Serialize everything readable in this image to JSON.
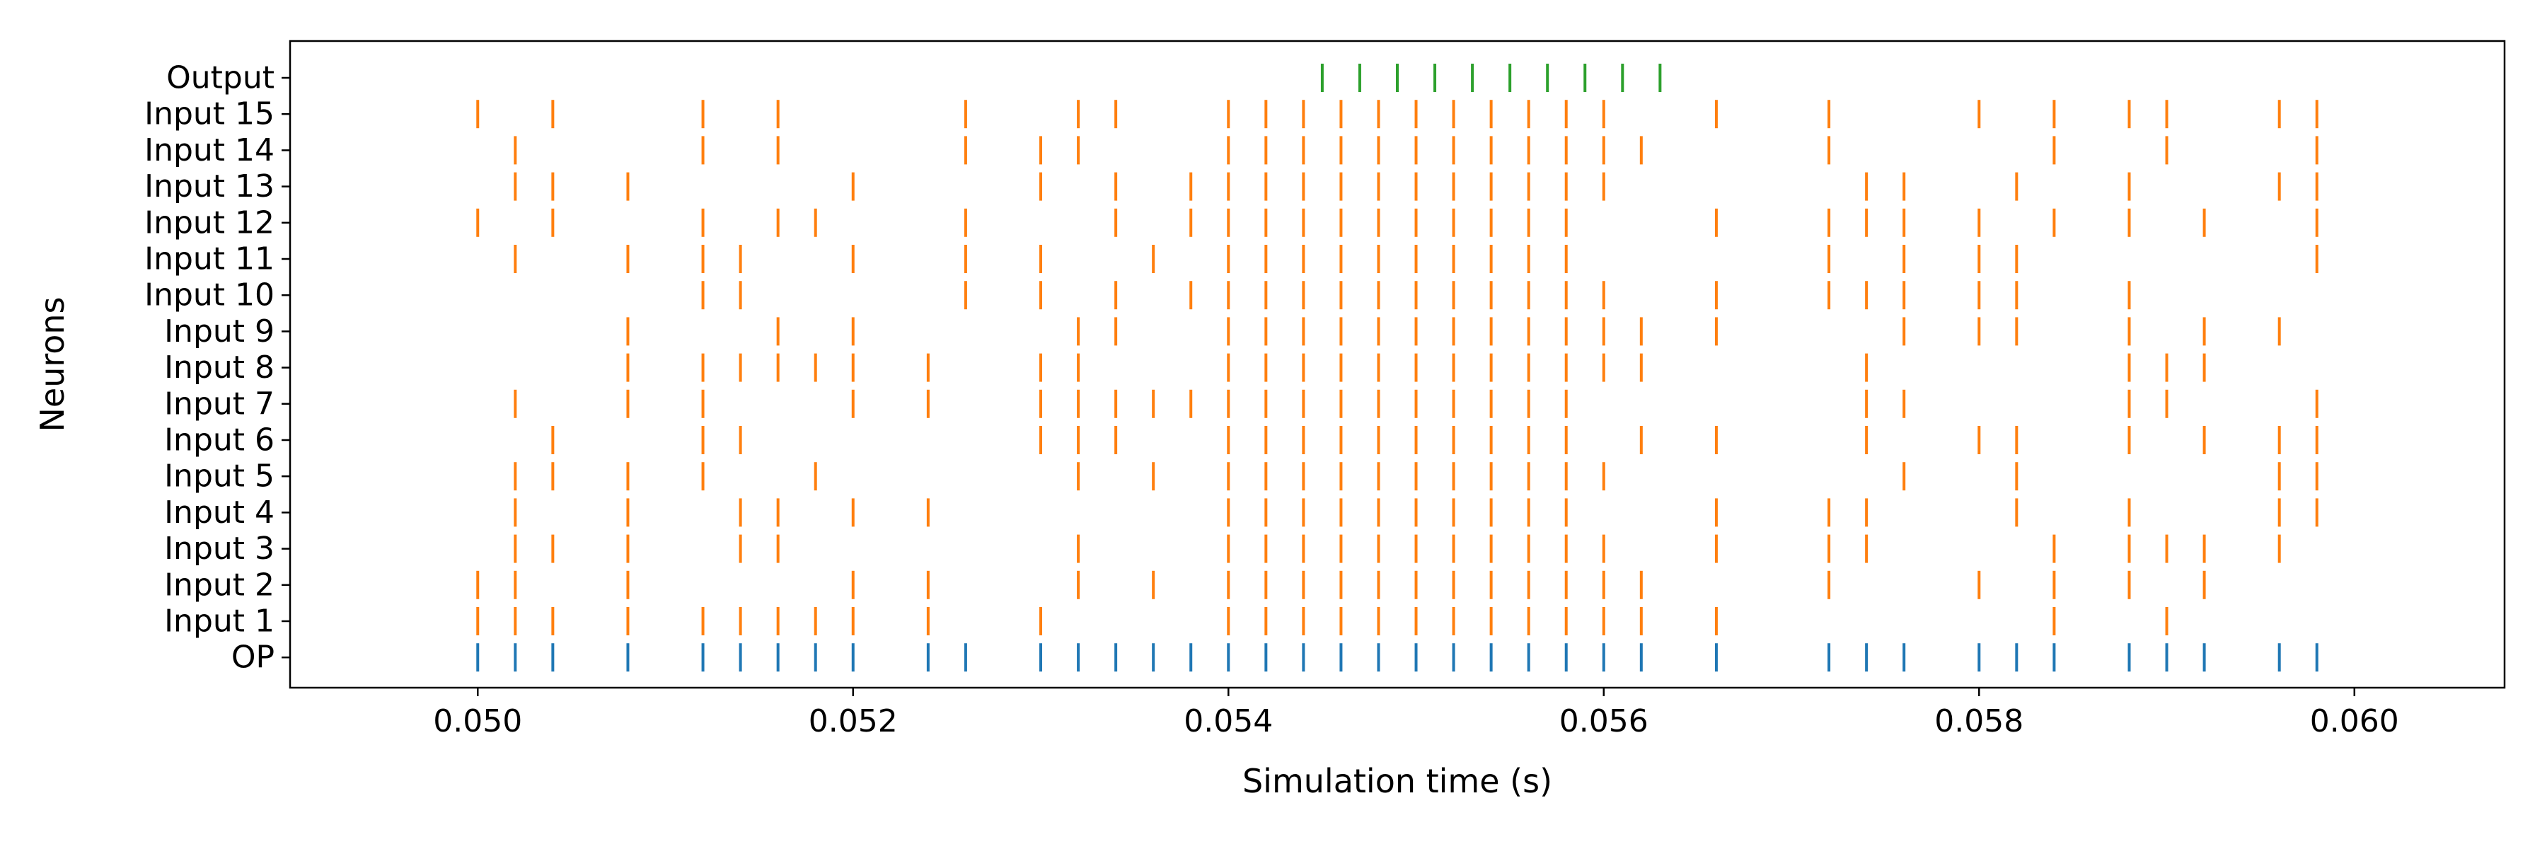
{
  "chart_data": {
    "type": "scatter",
    "subtype": "raster",
    "title": "",
    "xlabel": "Simulation time (s)",
    "ylabel": "Neurons",
    "xlim": [
      0.049,
      0.0608
    ],
    "xticks": [
      0.05,
      0.052,
      0.054,
      0.056,
      0.058,
      0.06
    ],
    "xtick_labels": [
      "0.050",
      "0.052",
      "0.054",
      "0.056",
      "0.058",
      "0.060"
    ],
    "grid": false,
    "legend": "none",
    "neurons": [
      "OP",
      "Input 1",
      "Input 2",
      "Input 3",
      "Input 4",
      "Input 5",
      "Input 6",
      "Input 7",
      "Input 8",
      "Input 9",
      "Input 10",
      "Input 11",
      "Input 12",
      "Input 13",
      "Input 14",
      "Input 15",
      "Output"
    ],
    "colors": {
      "OP": "#1f77b4",
      "Input": "#ff7f0e",
      "Output": "#2ca02c"
    },
    "spikes": {
      "OP": [
        0.05,
        0.0502,
        0.0504,
        0.0508,
        0.0512,
        0.0514,
        0.0516,
        0.0518,
        0.052,
        0.0524,
        0.0526,
        0.053,
        0.0532,
        0.0534,
        0.0536,
        0.0538,
        0.054,
        0.0542,
        0.0544,
        0.0546,
        0.0548,
        0.055,
        0.0552,
        0.0554,
        0.0556,
        0.0558,
        0.056,
        0.0562,
        0.0566,
        0.0572,
        0.0574,
        0.0576,
        0.058,
        0.0582,
        0.0584,
        0.0588,
        0.059,
        0.0592,
        0.0596,
        0.0598
      ],
      "Input 1": [
        0.05,
        0.0502,
        0.0504,
        0.0508,
        0.0512,
        0.0514,
        0.0516,
        0.0518,
        0.052,
        0.0524,
        0.053,
        0.054,
        0.0542,
        0.0544,
        0.0546,
        0.0548,
        0.055,
        0.0552,
        0.0554,
        0.0556,
        0.0558,
        0.056,
        0.0562,
        0.0566,
        0.0584,
        0.059
      ],
      "Input 2": [
        0.05,
        0.0502,
        0.0508,
        0.052,
        0.0524,
        0.0532,
        0.0536,
        0.054,
        0.0542,
        0.0544,
        0.0546,
        0.0548,
        0.055,
        0.0552,
        0.0554,
        0.0556,
        0.0558,
        0.056,
        0.0562,
        0.0572,
        0.058,
        0.0584,
        0.0588,
        0.0592
      ],
      "Input 3": [
        0.0502,
        0.0504,
        0.0508,
        0.0514,
        0.0516,
        0.0532,
        0.054,
        0.0542,
        0.0544,
        0.0546,
        0.0548,
        0.055,
        0.0552,
        0.0554,
        0.0556,
        0.0558,
        0.056,
        0.0566,
        0.0572,
        0.0574,
        0.0584,
        0.0588,
        0.059,
        0.0592,
        0.0596
      ],
      "Input 4": [
        0.0502,
        0.0508,
        0.0514,
        0.0516,
        0.052,
        0.0524,
        0.054,
        0.0542,
        0.0544,
        0.0546,
        0.0548,
        0.055,
        0.0552,
        0.0554,
        0.0556,
        0.0558,
        0.0566,
        0.0572,
        0.0574,
        0.0582,
        0.0588,
        0.0596,
        0.0598
      ],
      "Input 5": [
        0.0502,
        0.0504,
        0.0508,
        0.0512,
        0.0518,
        0.0532,
        0.0536,
        0.054,
        0.0542,
        0.0544,
        0.0546,
        0.0548,
        0.055,
        0.0552,
        0.0554,
        0.0556,
        0.0558,
        0.056,
        0.0576,
        0.0582,
        0.0596,
        0.0598
      ],
      "Input 6": [
        0.0504,
        0.0512,
        0.0514,
        0.053,
        0.0532,
        0.0534,
        0.054,
        0.0542,
        0.0544,
        0.0546,
        0.0548,
        0.055,
        0.0552,
        0.0554,
        0.0556,
        0.0558,
        0.0562,
        0.0566,
        0.0574,
        0.058,
        0.0582,
        0.0588,
        0.0592,
        0.0596,
        0.0598
      ],
      "Input 7": [
        0.0502,
        0.0508,
        0.0512,
        0.052,
        0.0524,
        0.053,
        0.0532,
        0.0534,
        0.0536,
        0.0538,
        0.054,
        0.0542,
        0.0544,
        0.0546,
        0.0548,
        0.055,
        0.0552,
        0.0554,
        0.0556,
        0.0558,
        0.0574,
        0.0576,
        0.0588,
        0.059,
        0.0598
      ],
      "Input 8": [
        0.0508,
        0.0512,
        0.0514,
        0.0516,
        0.0518,
        0.052,
        0.0524,
        0.053,
        0.0532,
        0.054,
        0.0542,
        0.0544,
        0.0546,
        0.0548,
        0.055,
        0.0552,
        0.0554,
        0.0556,
        0.0558,
        0.056,
        0.0562,
        0.0574,
        0.0588,
        0.059,
        0.0592
      ],
      "Input 9": [
        0.0508,
        0.0516,
        0.052,
        0.0532,
        0.0534,
        0.054,
        0.0542,
        0.0544,
        0.0546,
        0.0548,
        0.055,
        0.0552,
        0.0554,
        0.0556,
        0.0558,
        0.056,
        0.0562,
        0.0566,
        0.0576,
        0.058,
        0.0582,
        0.0588,
        0.0592,
        0.0596
      ],
      "Input 10": [
        0.0512,
        0.0514,
        0.0526,
        0.053,
        0.0534,
        0.0538,
        0.054,
        0.0542,
        0.0544,
        0.0546,
        0.0548,
        0.055,
        0.0552,
        0.0554,
        0.0556,
        0.0558,
        0.056,
        0.0566,
        0.0572,
        0.0574,
        0.0576,
        0.058,
        0.0582,
        0.0588
      ],
      "Input 11": [
        0.0502,
        0.0508,
        0.0512,
        0.0514,
        0.052,
        0.0526,
        0.053,
        0.0536,
        0.054,
        0.0542,
        0.0544,
        0.0546,
        0.0548,
        0.055,
        0.0552,
        0.0554,
        0.0556,
        0.0558,
        0.0572,
        0.0576,
        0.058,
        0.0582,
        0.0598
      ],
      "Input 12": [
        0.05,
        0.0504,
        0.0512,
        0.0516,
        0.0518,
        0.0526,
        0.0534,
        0.0538,
        0.054,
        0.0542,
        0.0544,
        0.0546,
        0.0548,
        0.055,
        0.0552,
        0.0554,
        0.0556,
        0.0558,
        0.0566,
        0.0572,
        0.0574,
        0.0576,
        0.058,
        0.0584,
        0.0588,
        0.0592,
        0.0598
      ],
      "Input 13": [
        0.0502,
        0.0504,
        0.0508,
        0.052,
        0.053,
        0.0534,
        0.0538,
        0.054,
        0.0542,
        0.0544,
        0.0546,
        0.0548,
        0.055,
        0.0552,
        0.0554,
        0.0556,
        0.0558,
        0.056,
        0.0574,
        0.0576,
        0.0582,
        0.0588,
        0.0596,
        0.0598
      ],
      "Input 14": [
        0.0502,
        0.0512,
        0.0516,
        0.0526,
        0.053,
        0.0532,
        0.054,
        0.0542,
        0.0544,
        0.0546,
        0.0548,
        0.055,
        0.0552,
        0.0554,
        0.0556,
        0.0558,
        0.056,
        0.0562,
        0.0572,
        0.0584,
        0.059,
        0.0598
      ],
      "Input 15": [
        0.05,
        0.0504,
        0.0512,
        0.0516,
        0.0526,
        0.0532,
        0.0534,
        0.054,
        0.0542,
        0.0544,
        0.0546,
        0.0548,
        0.055,
        0.0552,
        0.0554,
        0.0556,
        0.0558,
        0.056,
        0.0566,
        0.0572,
        0.058,
        0.0584,
        0.0588,
        0.059,
        0.0596,
        0.0598
      ],
      "Output": [
        0.0545,
        0.0547,
        0.0549,
        0.0551,
        0.0553,
        0.0555,
        0.0557,
        0.0559,
        0.0561,
        0.0563
      ]
    }
  }
}
